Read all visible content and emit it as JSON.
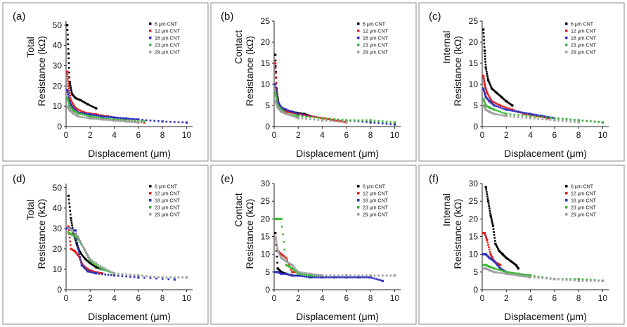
{
  "figure": {
    "panels": [
      {
        "label": "(a)",
        "ylabel_top": "Total",
        "ylabel": "Resistance (kΩ)",
        "xlabel": "Displacement (μm)",
        "yticks": [
          "0",
          "10",
          "20",
          "30",
          "40",
          "50"
        ],
        "xticks": [
          "0",
          "2",
          "4",
          "6",
          "8",
          "10"
        ],
        "legend": [
          "6 μm CNT",
          "12 μm CNT",
          "18 μm CNT",
          "23 μm CNT",
          "29 μm CNT"
        ]
      },
      {
        "label": "(b)",
        "ylabel_top": "Contact",
        "ylabel": "Resistance (kΩ)",
        "xlabel": "Displacement (μm)",
        "yticks": [
          "0",
          "5",
          "10",
          "15",
          "20",
          "25"
        ],
        "xticks": [
          "0",
          "2",
          "4",
          "6",
          "8",
          "10"
        ],
        "legend": [
          "6 μm CNT",
          "12 μm CNT",
          "18 μm CNT",
          "23 μm CNT",
          "29 μm CNT"
        ]
      },
      {
        "label": "(c)",
        "ylabel_top": "Internal",
        "ylabel": "Resistance (kΩ)",
        "xlabel": "Displacement (μm)",
        "yticks": [
          "0",
          "5",
          "10",
          "15",
          "20",
          "25"
        ],
        "xticks": [
          "0",
          "2",
          "4",
          "6",
          "8",
          "10"
        ],
        "legend": [
          "6 μm CNT",
          "12 μm CNT",
          "18 μm CNT",
          "23 μm CNT",
          "29 μm CNT"
        ]
      },
      {
        "label": "(d)",
        "ylabel_top": "Total",
        "ylabel": "Resistance (kΩ)",
        "xlabel": "Displacement (μm)",
        "yticks": [
          "0",
          "10",
          "20",
          "30",
          "40",
          "50"
        ],
        "xticks": [
          "0",
          "2",
          "4",
          "6",
          "8",
          "10"
        ],
        "legend": [
          "6 μm CNT",
          "12 μm CNT",
          "18 μm CNT",
          "23 μm CNT",
          "29 μm CNT"
        ]
      },
      {
        "label": "(e)",
        "ylabel_top": "Contact",
        "ylabel": "Resistance (kΩ)",
        "xlabel": "Displacement (μm)",
        "yticks": [
          "0",
          "5",
          "10",
          "15",
          "20",
          "25",
          "30"
        ],
        "xticks": [
          "0",
          "2",
          "4",
          "6",
          "8",
          "10"
        ],
        "legend": [
          "6 μm CNT",
          "12 μm CNT",
          "18 μm CNT",
          "23 μm CNT",
          "29 μm CNT"
        ]
      },
      {
        "label": "(f)",
        "ylabel_top": "Internal",
        "ylabel": "Resistance (kΩ)",
        "xlabel": "Displacement (μm)",
        "yticks": [
          "0",
          "5",
          "10",
          "15",
          "20",
          "25",
          "30"
        ],
        "xticks": [
          "0",
          "2",
          "4",
          "6",
          "8",
          "10"
        ],
        "legend": [
          "6 μm CNT",
          "12 μm CNT",
          "18 μm CNT",
          "23 μm CNT",
          "29 μm CNT"
        ]
      }
    ]
  },
  "colors": {
    "frame": "#8a8a8a",
    "axis": "#222222",
    "series": [
      "#000000",
      "#e32020",
      "#2e2fb8",
      "#3fb83a",
      "#9e9e9e"
    ]
  },
  "chart_data": [
    {
      "type": "scatter",
      "ylim": [
        0,
        52
      ],
      "xlim": [
        0,
        10.5
      ],
      "series": [
        {
          "name": "6 μm CNT",
          "x": [
            0.1,
            0.2,
            0.3,
            0.5,
            0.8,
            1.2,
            1.8,
            2.5
          ],
          "y": [
            50,
            36,
            22,
            16,
            14,
            13,
            11,
            9
          ]
        },
        {
          "name": "12 μm CNT",
          "x": [
            0.1,
            0.2,
            0.4,
            0.8,
            1.5,
            2.5,
            3.5,
            5,
            6.5
          ],
          "y": [
            27,
            20,
            13,
            9,
            7,
            6,
            5,
            3.5,
            2
          ]
        },
        {
          "name": "18 μm CNT",
          "x": [
            0.1,
            0.3,
            0.6,
            1,
            2,
            3,
            4,
            5,
            6,
            8,
            10
          ],
          "y": [
            18,
            12,
            9,
            7,
            6,
            5,
            4.5,
            4,
            3.5,
            2.5,
            2
          ]
        },
        {
          "name": "23 μm CNT",
          "x": [
            0.1,
            0.3,
            0.6,
            1,
            2,
            3,
            4,
            5,
            6.5
          ],
          "y": [
            14,
            10,
            8,
            6.5,
            5,
            4,
            3.5,
            3,
            2.5
          ]
        },
        {
          "name": "29 μm CNT",
          "x": [
            0.1,
            0.3,
            0.6,
            1,
            2,
            3,
            4,
            5,
            6
          ],
          "y": [
            10,
            8,
            6.5,
            5,
            4,
            3.5,
            3,
            2.5,
            2
          ]
        }
      ]
    },
    {
      "type": "scatter",
      "ylim": [
        0,
        25
      ],
      "xlim": [
        0,
        10.5
      ],
      "series": [
        {
          "name": "6 μm CNT",
          "x": [
            0.1,
            0.2,
            0.4,
            0.8,
            1.5,
            2.5,
            3
          ],
          "y": [
            17,
            9,
            5,
            4,
            3.5,
            3,
            2.5
          ]
        },
        {
          "name": "12 μm CNT",
          "x": [
            0.1,
            0.2,
            0.4,
            1,
            2,
            3,
            4,
            5,
            6
          ],
          "y": [
            15,
            8,
            5,
            3.5,
            3,
            2.5,
            2,
            1.5,
            1
          ]
        },
        {
          "name": "18 μm CNT",
          "x": [
            0.1,
            0.3,
            0.6,
            1,
            2,
            4,
            6,
            8,
            10
          ],
          "y": [
            10,
            6,
            4.5,
            4,
            3,
            2,
            1.5,
            1,
            0.5
          ]
        },
        {
          "name": "23 μm CNT",
          "x": [
            0.1,
            0.3,
            0.6,
            1,
            2,
            4,
            6,
            8,
            10
          ],
          "y": [
            8,
            5,
            4,
            3,
            2.5,
            2,
            1.5,
            1.5,
            1
          ]
        },
        {
          "name": "29 μm CNT",
          "x": [
            0.1,
            0.3,
            0.6,
            1,
            2,
            4,
            6
          ],
          "y": [
            6,
            4.5,
            3.5,
            3,
            2,
            1.5,
            1
          ]
        }
      ]
    },
    {
      "type": "scatter",
      "ylim": [
        0,
        25
      ],
      "xlim": [
        0,
        10.5
      ],
      "series": [
        {
          "name": "6 μm CNT",
          "x": [
            0.1,
            0.2,
            0.3,
            0.5,
            0.8,
            1.2,
            1.6,
            2,
            2.5
          ],
          "y": [
            23,
            18,
            14,
            11,
            9,
            8,
            7,
            6,
            5
          ]
        },
        {
          "name": "12 μm CNT",
          "x": [
            0.1,
            0.2,
            0.4,
            0.8,
            1.5,
            2.5,
            3.5,
            4.5,
            5.5
          ],
          "y": [
            12,
            10,
            8,
            6,
            5,
            4,
            3,
            2.5,
            2
          ]
        },
        {
          "name": "18 μm CNT",
          "x": [
            0.1,
            0.3,
            0.6,
            1,
            2,
            3,
            4,
            5,
            6,
            8,
            10
          ],
          "y": [
            9,
            7,
            6,
            5,
            4,
            3.5,
            3,
            2.5,
            2,
            1.5,
            1
          ]
        },
        {
          "name": "23 μm CNT",
          "x": [
            0.1,
            0.3,
            0.6,
            1,
            2,
            4,
            6,
            8,
            10
          ],
          "y": [
            6.5,
            5,
            4.5,
            4,
            3,
            2.5,
            2,
            1.5,
            1
          ]
        },
        {
          "name": "29 μm CNT",
          "x": [
            0.1,
            0.3,
            0.6,
            1,
            2,
            4,
            6,
            8
          ],
          "y": [
            5,
            4,
            3.5,
            3,
            2.5,
            2,
            1.5,
            1
          ]
        }
      ]
    },
    {
      "type": "scatter",
      "ylim": [
        0,
        52
      ],
      "xlim": [
        0,
        10.5
      ],
      "series": [
        {
          "name": "6 μm CNT",
          "x": [
            0.2,
            0.4,
            0.6,
            0.9,
            1.2,
            1.6,
            2,
            2.5,
            3
          ],
          "y": [
            46,
            35,
            28,
            22,
            18,
            15,
            13,
            11,
            10
          ]
        },
        {
          "name": "12 μm CNT",
          "x": [
            0.2,
            0.4,
            0.7,
            1,
            1.4,
            1.8,
            2.2,
            3
          ],
          "y": [
            31,
            20,
            19,
            17,
            12,
            10,
            9,
            8
          ]
        },
        {
          "name": "18 μm CNT",
          "x": [
            0.1,
            0.3,
            0.6,
            0.8,
            1,
            1.3,
            1.8,
            2.5,
            4,
            6,
            9
          ],
          "y": [
            30,
            30,
            29,
            29,
            20,
            12,
            9,
            8,
            7,
            6,
            5
          ]
        },
        {
          "name": "23 μm CNT",
          "x": [
            0.2,
            0.5,
            1,
            1.5,
            2,
            3,
            4,
            6,
            8,
            10
          ],
          "y": [
            28,
            27,
            25,
            20,
            14,
            10,
            8,
            7,
            6,
            6
          ]
        },
        {
          "name": "29 μm CNT",
          "x": [
            0.2,
            0.5,
            1,
            1.5,
            2,
            3,
            4,
            6,
            8,
            10
          ],
          "y": [
            30,
            29,
            26,
            20,
            15,
            11,
            8,
            7,
            6,
            6
          ]
        }
      ]
    },
    {
      "type": "scatter",
      "ylim": [
        0,
        30
      ],
      "xlim": [
        0,
        10.5
      ],
      "series": [
        {
          "name": "6 μm CNT",
          "x": [
            0.1,
            0.3,
            0.6,
            1,
            1.5,
            2
          ],
          "y": [
            16,
            6,
            5,
            4.5,
            4,
            4
          ]
        },
        {
          "name": "12 μm CNT",
          "x": [
            0.1,
            0.3,
            0.6,
            1,
            1.5,
            2
          ],
          "y": [
            15,
            11,
            10,
            9,
            5,
            5
          ]
        },
        {
          "name": "18 μm CNT",
          "x": [
            0.1,
            0.3,
            0.6,
            1,
            1.5,
            2,
            3,
            4,
            5,
            6,
            7,
            8,
            9
          ],
          "y": [
            5,
            5,
            4.5,
            4.5,
            4,
            4,
            3.5,
            3.5,
            3.5,
            3.5,
            3.5,
            3.5,
            2.5
          ]
        },
        {
          "name": "23 μm CNT",
          "x": [
            0.1,
            0.3,
            0.6,
            1,
            1.5,
            2,
            3,
            4,
            6,
            8,
            10
          ],
          "y": [
            20,
            20,
            20,
            7,
            6,
            4.5,
            4,
            4,
            4,
            4,
            4
          ]
        },
        {
          "name": "29 μm CNT",
          "x": [
            0.1,
            0.3,
            0.6,
            1,
            1.5,
            2,
            3,
            4,
            6,
            8,
            10
          ],
          "y": [
            15,
            11,
            9,
            8,
            7,
            5,
            4.5,
            4,
            4,
            4,
            4
          ]
        }
      ]
    },
    {
      "type": "scatter",
      "ylim": [
        0,
        30
      ],
      "xlim": [
        0,
        10.5
      ],
      "series": [
        {
          "name": "6 μm CNT",
          "x": [
            0.3,
            0.5,
            0.7,
            0.9,
            1.1,
            1.4,
            1.7,
            2,
            2.4,
            2.8,
            3
          ],
          "y": [
            29,
            25,
            21,
            18,
            13,
            11,
            10,
            9,
            8,
            7,
            6
          ]
        },
        {
          "name": "12 μm CNT",
          "x": [
            0.1,
            0.2,
            0.4,
            0.7,
            1,
            1.5
          ],
          "y": [
            16,
            16,
            14,
            10,
            8,
            7
          ]
        },
        {
          "name": "18 μm CNT",
          "x": [
            0.1,
            0.3,
            0.6,
            1,
            1.5,
            2,
            3,
            4,
            6,
            8,
            10
          ],
          "y": [
            10,
            10,
            9,
            8,
            6,
            5,
            4.5,
            4,
            3,
            3,
            2.5
          ]
        },
        {
          "name": "23 μm CNT",
          "x": [
            0.1,
            0.3,
            0.6,
            1,
            2,
            3,
            4,
            6,
            8,
            10
          ],
          "y": [
            7,
            7,
            6.5,
            6,
            5,
            4.5,
            4,
            3,
            3,
            2.5
          ]
        },
        {
          "name": "29 μm CNT",
          "x": [
            0.1,
            0.3,
            0.6,
            1,
            2,
            3,
            4,
            6,
            8,
            10
          ],
          "y": [
            6,
            6,
            5.5,
            5,
            4.5,
            4,
            3.5,
            3,
            2.5,
            2.5
          ]
        }
      ]
    }
  ]
}
